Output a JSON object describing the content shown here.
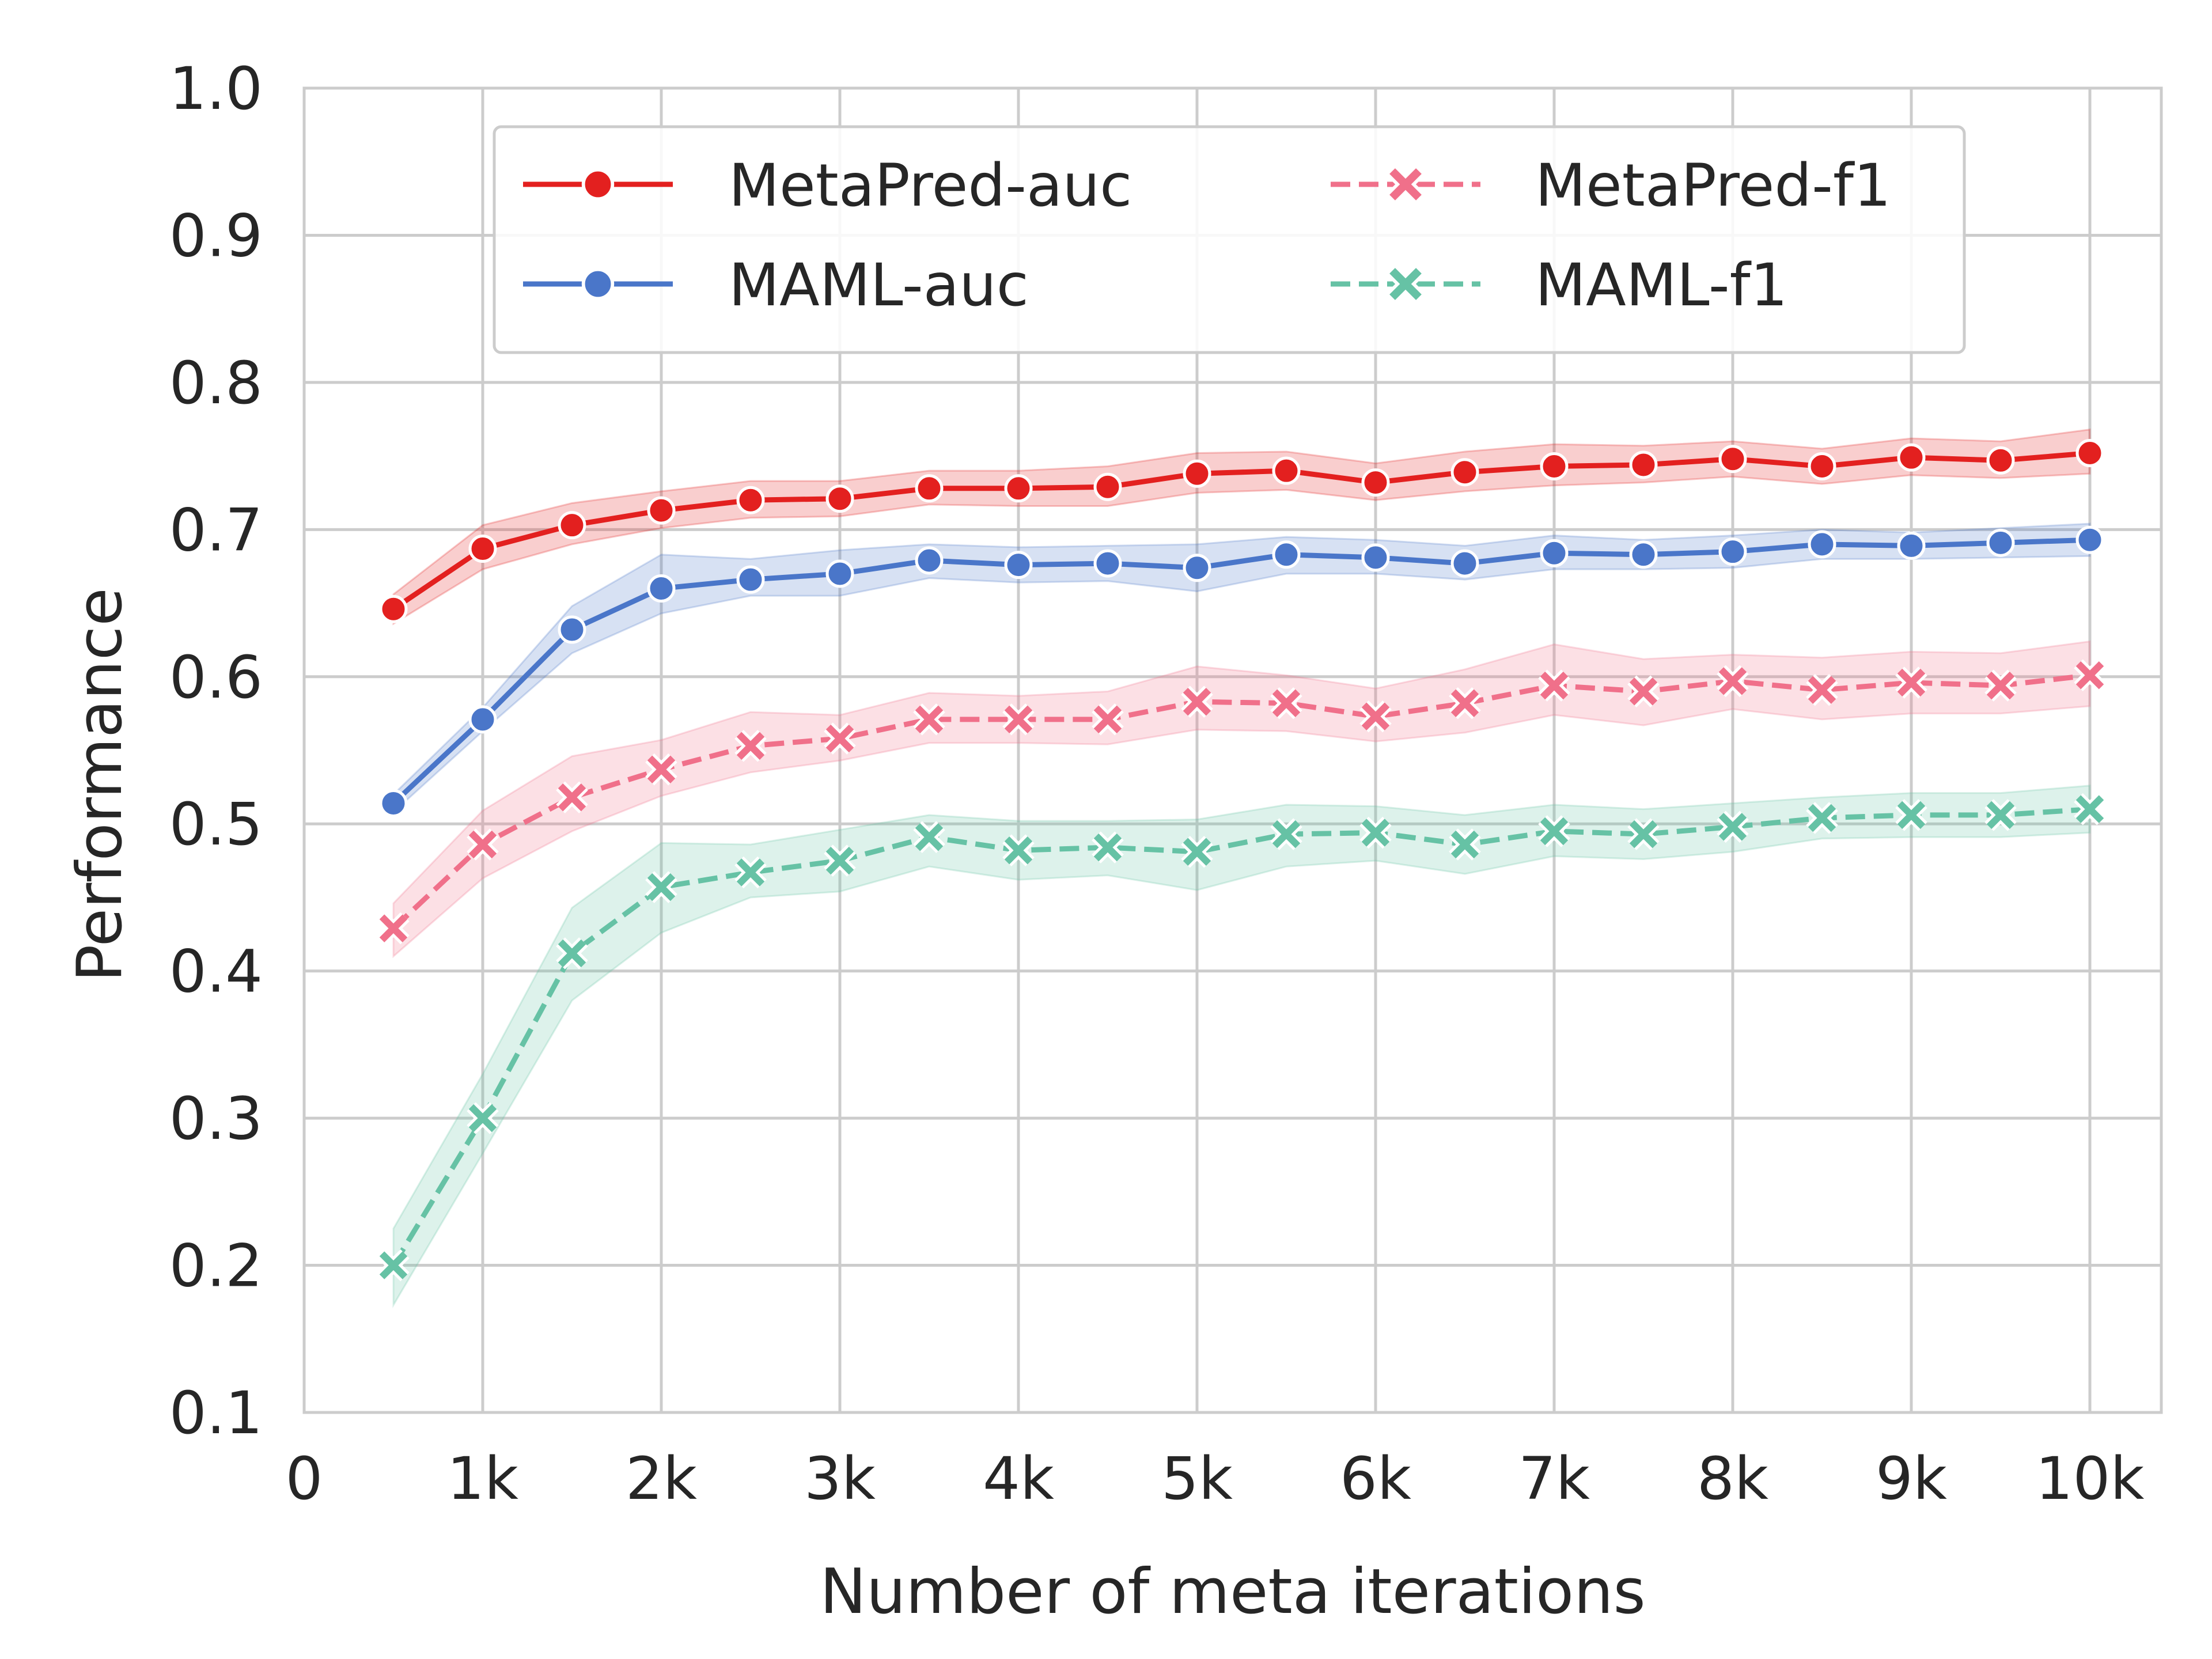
{
  "chart_data": {
    "type": "line",
    "title": "",
    "xlabel": "Number of meta iterations",
    "ylabel": "Performance",
    "xlim": [
      0,
      10400
    ],
    "ylim": [
      0.1,
      1.0
    ],
    "x_ticks": [
      0,
      1000,
      2000,
      3000,
      4000,
      5000,
      6000,
      7000,
      8000,
      9000,
      10000
    ],
    "x_tick_labels": [
      "0",
      "1k",
      "2k",
      "3k",
      "4k",
      "5k",
      "6k",
      "7k",
      "8k",
      "9k",
      "10k"
    ],
    "y_ticks": [
      0.1,
      0.2,
      0.3,
      0.4,
      0.5,
      0.6,
      0.7,
      0.8,
      0.9,
      1.0
    ],
    "y_tick_labels": [
      "0.1",
      "0.2",
      "0.3",
      "0.4",
      "0.5",
      "0.6",
      "0.7",
      "0.8",
      "0.9",
      "1.0"
    ],
    "grid": true,
    "legend_position": "top",
    "x": [
      500,
      1000,
      1500,
      2000,
      2500,
      3000,
      3500,
      4000,
      4500,
      5000,
      5500,
      6000,
      6500,
      7000,
      7500,
      8000,
      8500,
      9000,
      9500,
      10000
    ],
    "series": [
      {
        "name": "MetaPred-auc",
        "color": "#e3201f",
        "marker": "circle",
        "line_style": "solid",
        "values": [
          0.646,
          0.687,
          0.703,
          0.713,
          0.72,
          0.721,
          0.728,
          0.728,
          0.729,
          0.738,
          0.74,
          0.732,
          0.739,
          0.743,
          0.744,
          0.748,
          0.743,
          0.749,
          0.747,
          0.752
        ],
        "ci_lower": [
          0.636,
          0.673,
          0.69,
          0.701,
          0.708,
          0.709,
          0.717,
          0.716,
          0.716,
          0.725,
          0.727,
          0.72,
          0.726,
          0.73,
          0.732,
          0.736,
          0.731,
          0.737,
          0.735,
          0.738
        ],
        "ci_upper": [
          0.656,
          0.703,
          0.718,
          0.726,
          0.733,
          0.733,
          0.74,
          0.74,
          0.743,
          0.752,
          0.753,
          0.745,
          0.753,
          0.758,
          0.757,
          0.76,
          0.755,
          0.762,
          0.76,
          0.768
        ]
      },
      {
        "name": "MAML-auc",
        "color": "#4a76c9",
        "marker": "circle",
        "line_style": "solid",
        "values": [
          0.514,
          0.571,
          0.632,
          0.66,
          0.666,
          0.67,
          0.679,
          0.676,
          0.677,
          0.674,
          0.683,
          0.681,
          0.677,
          0.684,
          0.683,
          0.685,
          0.69,
          0.689,
          0.691,
          0.693
        ],
        "ci_lower": [
          0.508,
          0.563,
          0.616,
          0.643,
          0.655,
          0.655,
          0.667,
          0.664,
          0.665,
          0.658,
          0.67,
          0.67,
          0.666,
          0.673,
          0.673,
          0.674,
          0.68,
          0.68,
          0.681,
          0.682
        ],
        "ci_upper": [
          0.52,
          0.579,
          0.648,
          0.683,
          0.68,
          0.686,
          0.69,
          0.688,
          0.689,
          0.69,
          0.695,
          0.693,
          0.689,
          0.696,
          0.693,
          0.696,
          0.7,
          0.698,
          0.701,
          0.704
        ]
      },
      {
        "name": "MetaPred-f1",
        "color": "#f0708a",
        "marker": "x",
        "line_style": "dashed",
        "values": [
          0.429,
          0.486,
          0.518,
          0.537,
          0.553,
          0.558,
          0.571,
          0.571,
          0.571,
          0.583,
          0.582,
          0.573,
          0.582,
          0.594,
          0.59,
          0.597,
          0.591,
          0.596,
          0.594,
          0.601
        ],
        "ci_lower": [
          0.41,
          0.463,
          0.495,
          0.519,
          0.535,
          0.543,
          0.555,
          0.555,
          0.554,
          0.564,
          0.563,
          0.556,
          0.562,
          0.574,
          0.567,
          0.578,
          0.571,
          0.575,
          0.575,
          0.58
        ],
        "ci_upper": [
          0.446,
          0.509,
          0.546,
          0.557,
          0.576,
          0.574,
          0.589,
          0.587,
          0.59,
          0.607,
          0.601,
          0.592,
          0.605,
          0.622,
          0.612,
          0.615,
          0.613,
          0.617,
          0.616,
          0.624
        ]
      },
      {
        "name": "MAML-f1",
        "color": "#66c2a5",
        "marker": "x",
        "line_style": "dashed",
        "values": [
          0.2,
          0.3,
          0.412,
          0.457,
          0.467,
          0.475,
          0.491,
          0.482,
          0.484,
          0.481,
          0.493,
          0.494,
          0.486,
          0.495,
          0.493,
          0.498,
          0.504,
          0.506,
          0.506,
          0.51
        ],
        "ci_lower": [
          0.173,
          0.276,
          0.38,
          0.426,
          0.45,
          0.454,
          0.471,
          0.462,
          0.465,
          0.455,
          0.471,
          0.475,
          0.466,
          0.478,
          0.476,
          0.481,
          0.49,
          0.491,
          0.491,
          0.494
        ],
        "ci_upper": [
          0.225,
          0.33,
          0.443,
          0.487,
          0.486,
          0.496,
          0.506,
          0.502,
          0.502,
          0.503,
          0.513,
          0.512,
          0.506,
          0.513,
          0.51,
          0.514,
          0.518,
          0.521,
          0.521,
          0.526
        ]
      }
    ]
  }
}
